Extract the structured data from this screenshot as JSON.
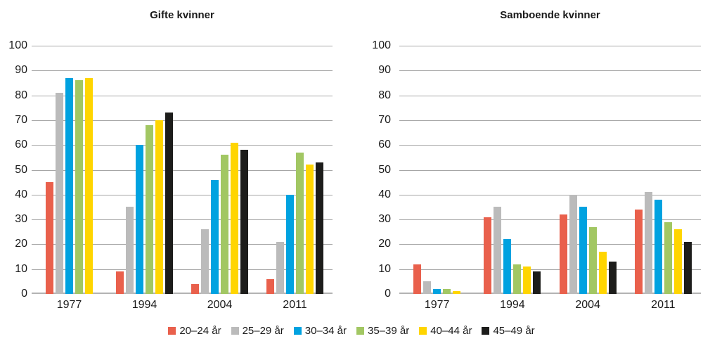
{
  "figure": {
    "background": "#ffffff",
    "text_color": "#1a1a1a",
    "grid_color": "#a6a6a6",
    "axis_color": "#b3b3b3"
  },
  "chart_data": [
    {
      "type": "bar",
      "title": "Gifte kvinner",
      "categories": [
        "1977",
        "1994",
        "2004",
        "2011"
      ],
      "series": [
        {
          "name": "20–24 år",
          "color": "#e9604c",
          "values": [
            45,
            9,
            4,
            6
          ]
        },
        {
          "name": "25–29 år",
          "color": "#bbbbbb",
          "values": [
            81,
            35,
            26,
            21
          ]
        },
        {
          "name": "30–34 år",
          "color": "#00a2e0",
          "values": [
            87,
            60,
            46,
            40
          ]
        },
        {
          "name": "35–39 år",
          "color": "#a2c763",
          "values": [
            86,
            68,
            56,
            57
          ]
        },
        {
          "name": "40–44 år",
          "color": "#ffd500",
          "values": [
            87,
            70,
            61,
            52
          ]
        },
        {
          "name": "45–49 år",
          "color": "#1d1d1b",
          "values": [
            null,
            73,
            58,
            53
          ]
        }
      ],
      "xlabel": "",
      "ylabel": "",
      "ylim": [
        0,
        100
      ],
      "ytick_step": 10,
      "grid": true,
      "legend_position": "bottom"
    },
    {
      "type": "bar",
      "title": "Samboende kvinner",
      "categories": [
        "1977",
        "1994",
        "2004",
        "2011"
      ],
      "series": [
        {
          "name": "20–24 år",
          "color": "#e9604c",
          "values": [
            12,
            31,
            32,
            34
          ]
        },
        {
          "name": "25–29 år",
          "color": "#bbbbbb",
          "values": [
            5,
            35,
            40,
            41
          ]
        },
        {
          "name": "30–34 år",
          "color": "#00a2e0",
          "values": [
            2,
            22,
            35,
            38
          ]
        },
        {
          "name": "35–39 år",
          "color": "#a2c763",
          "values": [
            2,
            12,
            27,
            29
          ]
        },
        {
          "name": "40–44 år",
          "color": "#ffd500",
          "values": [
            1,
            11,
            17,
            26
          ]
        },
        {
          "name": "45–49 år",
          "color": "#1d1d1b",
          "values": [
            null,
            9,
            13,
            21
          ]
        }
      ],
      "xlabel": "",
      "ylabel": "",
      "ylim": [
        0,
        100
      ],
      "ytick_step": 10,
      "grid": true,
      "legend_position": "bottom"
    }
  ],
  "legend": {
    "items": [
      {
        "label": "20–24 år",
        "color": "#e9604c"
      },
      {
        "label": "25–29 år",
        "color": "#bbbbbb"
      },
      {
        "label": "30–34 år",
        "color": "#00a2e0"
      },
      {
        "label": "35–39 år",
        "color": "#a2c763"
      },
      {
        "label": "40–44 år",
        "color": "#ffd500"
      },
      {
        "label": "45–49 år",
        "color": "#1d1d1b"
      }
    ]
  }
}
